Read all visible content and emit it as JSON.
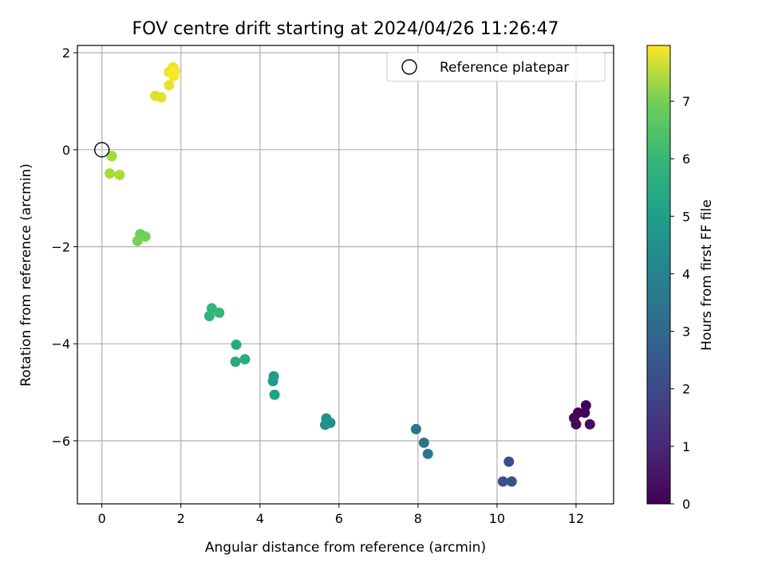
{
  "chart_data": {
    "type": "scatter",
    "title": "FOV centre drift starting at 2024/04/26 11:26:47",
    "xlabel": "Angular distance from reference (arcmin)",
    "ylabel": "Rotation from reference (arcmin)",
    "xlim": [
      -0.62,
      12.95
    ],
    "ylim": [
      -7.3,
      2.15
    ],
    "xticks": [
      0,
      2,
      4,
      6,
      8,
      10,
      12
    ],
    "yticks": [
      2,
      0,
      -2,
      -4,
      -6
    ],
    "grid": true,
    "legend": {
      "position": "top-right",
      "entries": [
        "Reference platepar"
      ]
    },
    "reference_point": {
      "x": 0,
      "y": 0
    },
    "colormap": "viridis",
    "colorbar": {
      "label": "Hours from first FF file",
      "min": 0,
      "max": 7.97,
      "ticks": [
        0,
        1,
        2,
        3,
        4,
        5,
        6,
        7
      ]
    },
    "points": [
      {
        "x": 12.25,
        "y": -5.27,
        "t": 0.02
      },
      {
        "x": 12.05,
        "y": -5.42,
        "t": 0.06
      },
      {
        "x": 12.22,
        "y": -5.42,
        "t": 0.1
      },
      {
        "x": 11.95,
        "y": -5.53,
        "t": 0.14
      },
      {
        "x": 12.0,
        "y": -5.66,
        "t": 0.18
      },
      {
        "x": 12.35,
        "y": -5.66,
        "t": 0.22
      },
      {
        "x": 10.3,
        "y": -6.43,
        "t": 1.92
      },
      {
        "x": 10.15,
        "y": -6.84,
        "t": 1.98
      },
      {
        "x": 10.37,
        "y": -6.84,
        "t": 2.04
      },
      {
        "x": 7.95,
        "y": -5.76,
        "t": 3.02
      },
      {
        "x": 8.15,
        "y": -6.04,
        "t": 3.07
      },
      {
        "x": 8.25,
        "y": -6.27,
        "t": 3.12
      },
      {
        "x": 5.68,
        "y": -5.54,
        "t": 3.88
      },
      {
        "x": 5.65,
        "y": -5.67,
        "t": 3.94
      },
      {
        "x": 5.78,
        "y": -5.63,
        "t": 4.0
      },
      {
        "x": 4.35,
        "y": -4.67,
        "t": 4.35
      },
      {
        "x": 4.33,
        "y": -4.77,
        "t": 4.4
      },
      {
        "x": 4.37,
        "y": -5.05,
        "t": 4.45
      },
      {
        "x": 3.4,
        "y": -4.02,
        "t": 4.8
      },
      {
        "x": 3.38,
        "y": -4.37,
        "t": 4.85
      },
      {
        "x": 3.62,
        "y": -4.32,
        "t": 4.9
      },
      {
        "x": 2.78,
        "y": -3.27,
        "t": 5.2
      },
      {
        "x": 2.72,
        "y": -3.43,
        "t": 5.25
      },
      {
        "x": 2.97,
        "y": -3.36,
        "t": 5.3
      },
      {
        "x": 0.97,
        "y": -1.74,
        "t": 6.2
      },
      {
        "x": 1.1,
        "y": -1.79,
        "t": 6.25
      },
      {
        "x": 0.9,
        "y": -1.88,
        "t": 6.3
      },
      {
        "x": 0.25,
        "y": -0.13,
        "t": 6.85
      },
      {
        "x": 0.2,
        "y": -0.49,
        "t": 6.9
      },
      {
        "x": 0.45,
        "y": -0.52,
        "t": 6.95
      },
      {
        "x": 1.35,
        "y": 1.11,
        "t": 7.55
      },
      {
        "x": 1.5,
        "y": 1.08,
        "t": 7.6
      },
      {
        "x": 1.7,
        "y": 1.33,
        "t": 7.7
      },
      {
        "x": 1.7,
        "y": 1.6,
        "t": 7.75
      },
      {
        "x": 1.8,
        "y": 1.7,
        "t": 7.8
      },
      {
        "x": 1.85,
        "y": 1.63,
        "t": 7.85
      },
      {
        "x": 1.82,
        "y": 1.52,
        "t": 7.9
      },
      {
        "x": 1.78,
        "y": 1.58,
        "t": 7.95
      }
    ]
  }
}
